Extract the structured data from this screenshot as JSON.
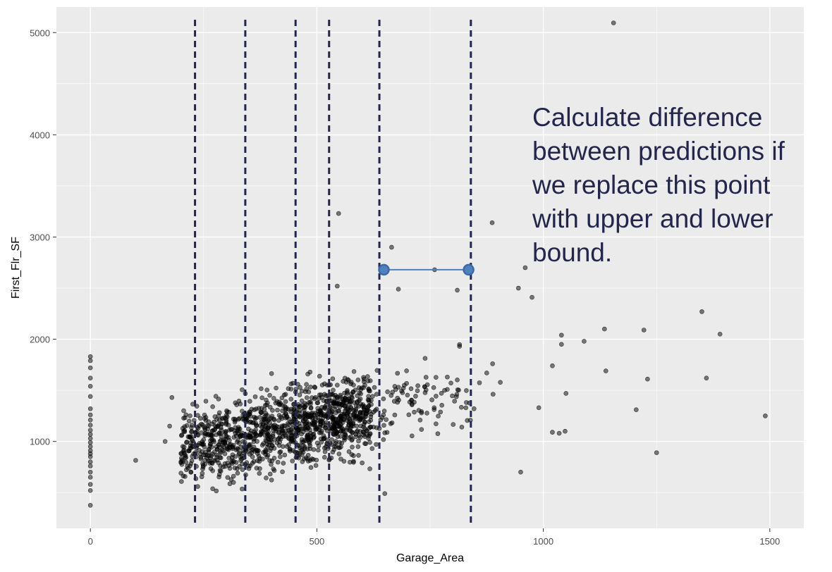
{
  "chart_data": {
    "type": "scatter",
    "xlabel": "Garage_Area",
    "ylabel": "First_Flr_SF",
    "xlim": [
      -75,
      1575
    ],
    "ylim": [
      150,
      5250
    ],
    "x_ticks": [
      0,
      500,
      1000,
      1500
    ],
    "y_ticks": [
      1000,
      2000,
      3000,
      4000,
      5000
    ],
    "grid": true,
    "background": "#ebebeb",
    "point_color": "#000000",
    "point_opacity": 0.5,
    "cluster_points": [
      {
        "x": 0,
        "y": 375
      },
      {
        "x": 0,
        "y": 520
      },
      {
        "x": 0,
        "y": 580
      },
      {
        "x": 0,
        "y": 650
      },
      {
        "x": 0,
        "y": 700
      },
      {
        "x": 0,
        "y": 760
      },
      {
        "x": 0,
        "y": 800
      },
      {
        "x": 0,
        "y": 850
      },
      {
        "x": 0,
        "y": 880
      },
      {
        "x": 0,
        "y": 910
      },
      {
        "x": 0,
        "y": 950
      },
      {
        "x": 0,
        "y": 990
      },
      {
        "x": 0,
        "y": 1030
      },
      {
        "x": 0,
        "y": 1070
      },
      {
        "x": 0,
        "y": 1110
      },
      {
        "x": 0,
        "y": 1160
      },
      {
        "x": 0,
        "y": 1210
      },
      {
        "x": 0,
        "y": 1260
      },
      {
        "x": 0,
        "y": 1320
      },
      {
        "x": 0,
        "y": 1440
      },
      {
        "x": 0,
        "y": 1540
      },
      {
        "x": 0,
        "y": 1620
      },
      {
        "x": 0,
        "y": 1720
      },
      {
        "x": 0,
        "y": 1790
      },
      {
        "x": 0,
        "y": 1830
      },
      {
        "x": 100,
        "y": 815
      },
      {
        "x": 165,
        "y": 1000
      },
      {
        "x": 180,
        "y": 1430
      },
      {
        "x": 175,
        "y": 1150
      }
    ],
    "highlight_points": [
      {
        "x": 1155,
        "y": 5095
      },
      {
        "x": 548,
        "y": 3230
      },
      {
        "x": 887,
        "y": 3140
      },
      {
        "x": 665,
        "y": 2900
      },
      {
        "x": 1350,
        "y": 2270
      },
      {
        "x": 1390,
        "y": 2050
      },
      {
        "x": 1135,
        "y": 2100
      },
      {
        "x": 1222,
        "y": 2090
      },
      {
        "x": 1360,
        "y": 1620
      },
      {
        "x": 1230,
        "y": 1610
      },
      {
        "x": 1138,
        "y": 1690
      },
      {
        "x": 1205,
        "y": 1310
      },
      {
        "x": 1490,
        "y": 1250
      },
      {
        "x": 1250,
        "y": 890
      },
      {
        "x": 1050,
        "y": 1470
      },
      {
        "x": 1090,
        "y": 1980
      },
      {
        "x": 1040,
        "y": 2040
      },
      {
        "x": 1040,
        "y": 1950
      },
      {
        "x": 1020,
        "y": 1740
      },
      {
        "x": 1020,
        "y": 1090
      },
      {
        "x": 1048,
        "y": 1100
      },
      {
        "x": 1035,
        "y": 1080
      },
      {
        "x": 960,
        "y": 2700
      },
      {
        "x": 945,
        "y": 2500
      },
      {
        "x": 975,
        "y": 2410
      },
      {
        "x": 760,
        "y": 2680
      },
      {
        "x": 680,
        "y": 2490
      },
      {
        "x": 810,
        "y": 2480
      },
      {
        "x": 545,
        "y": 2520
      },
      {
        "x": 650,
        "y": 490
      },
      {
        "x": 950,
        "y": 700
      },
      {
        "x": 990,
        "y": 1330
      }
    ],
    "band_lines_x": [
      231,
      342,
      453,
      527,
      638,
      840
    ],
    "band_line_color": "#23254d",
    "interval": {
      "x_start": 648,
      "x_end": 835,
      "y": 2680,
      "color": "#4f81bd"
    },
    "annotation_lines": [
      "Calculate difference",
      "between predictions if",
      "we replace this point",
      "with upper and lower",
      "bound."
    ]
  }
}
